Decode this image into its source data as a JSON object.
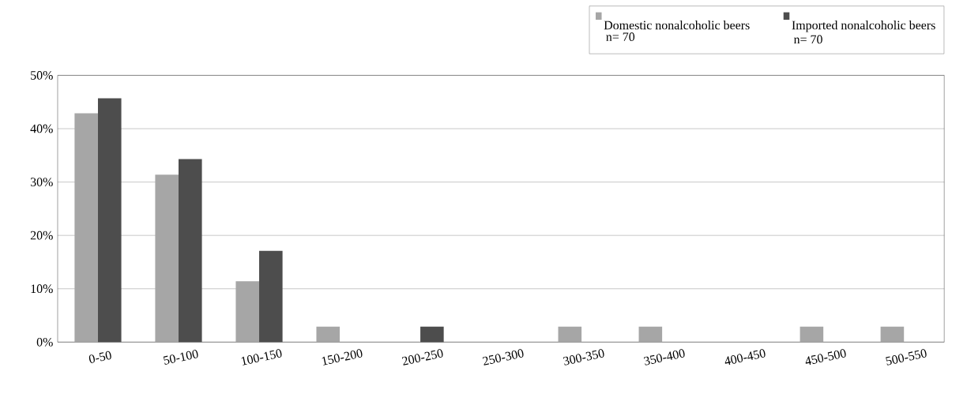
{
  "chart_data": {
    "type": "bar",
    "categories": [
      "0-50",
      "50-100",
      "100-150",
      "150-200",
      "200-250",
      "250-300",
      "300-350",
      "350-400",
      "400-450",
      "450-500",
      "500-550"
    ],
    "series": [
      {
        "name": "Domestic nonalcoholic beers",
        "color": "#a6a6a6",
        "values": [
          42.9,
          31.4,
          11.4,
          2.9,
          0,
          0,
          2.9,
          2.9,
          0,
          2.9,
          2.9
        ]
      },
      {
        "name": "Imported nonalcoholic beers",
        "color": "#4d4d4d",
        "values": [
          45.7,
          34.3,
          17.1,
          0,
          2.9,
          0,
          0,
          0,
          0,
          0,
          0
        ]
      }
    ],
    "annotations": [
      "n= 70",
      "n= 70"
    ],
    "ylim": [
      0,
      50
    ],
    "yticks": [
      {
        "value": 0,
        "label": "0%"
      },
      {
        "value": 10,
        "label": "10%"
      },
      {
        "value": 20,
        "label": "20%"
      },
      {
        "value": 30,
        "label": "30%"
      },
      {
        "value": 40,
        "label": "40%"
      },
      {
        "value": 50,
        "label": "50%"
      }
    ],
    "grid": "y",
    "legend": "top right"
  }
}
